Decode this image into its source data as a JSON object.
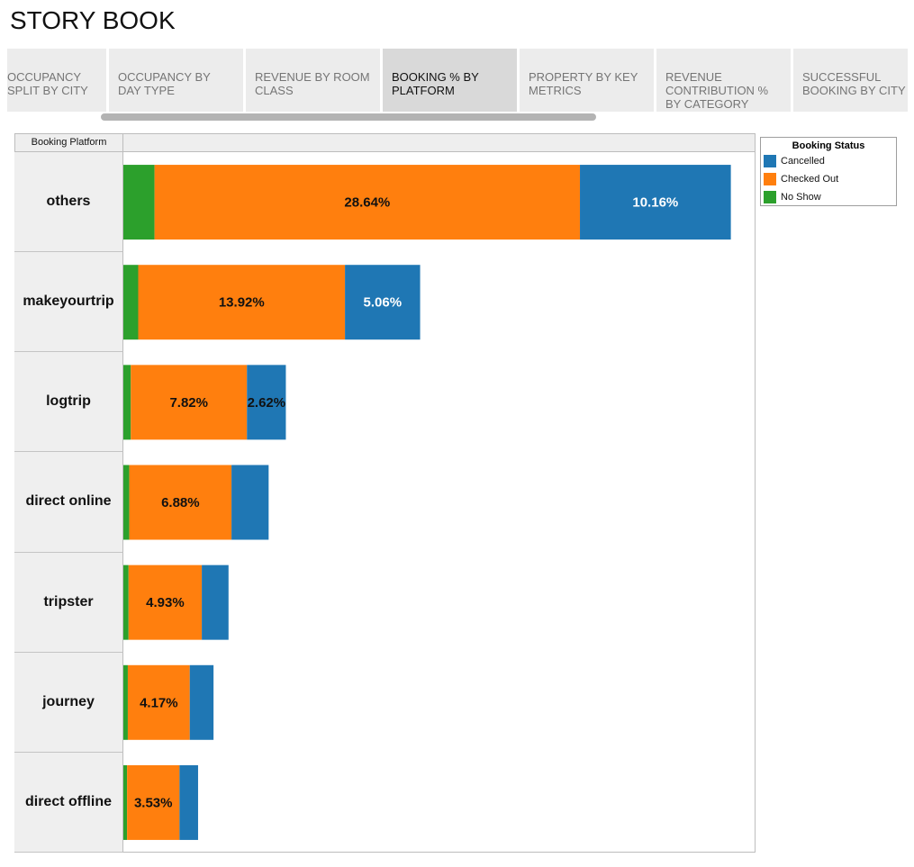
{
  "page": {
    "title": "STORY BOOK"
  },
  "tabs": [
    {
      "label": "OCCUPANCY\nSPLIT BY CITY",
      "active": false
    },
    {
      "label": "OCCUPANCY BY\nDAY TYPE",
      "active": false
    },
    {
      "label": "REVENUE BY ROOM\nCLASS",
      "active": false
    },
    {
      "label": "BOOKING % BY\nPLATFORM",
      "active": true
    },
    {
      "label": "PROPERTY BY KEY\nMETRICS",
      "active": false
    },
    {
      "label": "REVENUE\nCONTRIBUTION %\nBY CATEGORY",
      "active": false
    },
    {
      "label": "SUCCESSFUL\nBOOKING BY CITY",
      "active": false
    }
  ],
  "colors": {
    "cancelled": "#1f77b4",
    "checked_out": "#ff7f0e",
    "no_show": "#2ca02c"
  },
  "chart_data": {
    "type": "bar",
    "orientation": "horizontal",
    "stacked": true,
    "row_header": "Booking Platform",
    "categories": [
      "others",
      "makeyourtrip",
      "logtrip",
      "direct online",
      "tripster",
      "journey",
      "direct offline"
    ],
    "series": [
      {
        "name": "No Show",
        "color": "#2ca02c",
        "values": [
          2.1,
          1.0,
          0.5,
          0.4,
          0.35,
          0.3,
          0.25
        ],
        "labels": [
          "",
          "",
          "",
          "",
          "",
          "",
          ""
        ]
      },
      {
        "name": "Checked Out",
        "color": "#ff7f0e",
        "values": [
          28.64,
          13.92,
          7.82,
          6.88,
          4.93,
          4.17,
          3.53
        ],
        "labels": [
          "28.64%",
          "13.92%",
          "7.82%",
          "6.88%",
          "4.93%",
          "4.17%",
          "3.53%"
        ]
      },
      {
        "name": "Cancelled",
        "color": "#1f77b4",
        "values": [
          10.16,
          5.06,
          2.62,
          2.5,
          1.8,
          1.6,
          1.25
        ],
        "labels": [
          "10.16%",
          "5.06%",
          "2.62%",
          "",
          "",
          "",
          ""
        ]
      }
    ],
    "xlim": [
      0,
      42.5
    ],
    "grid": false,
    "legend": {
      "title": "Booking Status",
      "position": "top-right",
      "entries": [
        {
          "name": "Cancelled",
          "color": "#1f77b4"
        },
        {
          "name": "Checked Out",
          "color": "#ff7f0e"
        },
        {
          "name": "No Show",
          "color": "#2ca02c"
        }
      ]
    }
  }
}
